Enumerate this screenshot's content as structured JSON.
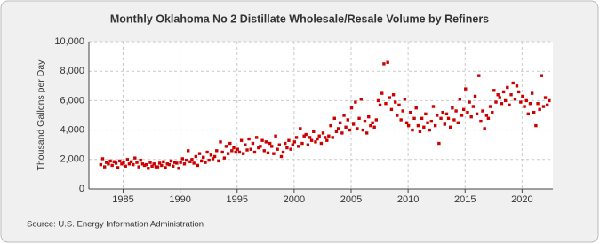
{
  "chart_data": {
    "type": "scatter",
    "title": "Monthly Oklahoma No 2 Distillate Wholesale/Resale Volume by Refiners",
    "y_label": "Thousand Gallons per Day",
    "source": "Source: U.S. Energy Information Administration",
    "color": "#cc0000",
    "grid": true,
    "xlim": [
      1982,
      2022.7
    ],
    "xticks": [
      1985,
      1990,
      1995,
      2000,
      2005,
      2010,
      2015,
      2020
    ],
    "ylim": [
      0,
      10000
    ],
    "yticks": [
      0,
      {
        "value": 2000,
        "label": "2,000"
      },
      {
        "value": 4000,
        "label": "4,000"
      },
      {
        "value": 6000,
        "label": "6,000"
      },
      {
        "value": 8000,
        "label": "8,000"
      },
      {
        "value": 10000,
        "label": "10,000"
      }
    ],
    "x": [
      1983.04,
      1983.21,
      1983.38,
      1983.54,
      1983.71,
      1983.88,
      1984.04,
      1984.21,
      1984.38,
      1984.54,
      1984.71,
      1984.88,
      1985.04,
      1985.21,
      1985.38,
      1985.54,
      1985.71,
      1985.88,
      1986.04,
      1986.21,
      1986.38,
      1986.54,
      1986.71,
      1986.88,
      1987.04,
      1987.21,
      1987.38,
      1987.54,
      1987.71,
      1987.88,
      1988.04,
      1988.21,
      1988.38,
      1988.54,
      1988.71,
      1988.88,
      1989.04,
      1989.21,
      1989.38,
      1989.54,
      1989.71,
      1989.88,
      1990.04,
      1990.21,
      1990.38,
      1990.54,
      1990.71,
      1990.88,
      1991.04,
      1991.21,
      1991.38,
      1991.54,
      1991.71,
      1991.88,
      1992.04,
      1992.21,
      1992.38,
      1992.54,
      1992.71,
      1992.88,
      1993.04,
      1993.21,
      1993.38,
      1993.54,
      1993.71,
      1993.88,
      1994.04,
      1994.21,
      1994.38,
      1994.54,
      1994.71,
      1994.88,
      1995.04,
      1995.21,
      1995.38,
      1995.54,
      1995.71,
      1995.88,
      1996.04,
      1996.21,
      1996.38,
      1996.54,
      1996.71,
      1996.88,
      1997.04,
      1997.21,
      1997.38,
      1997.54,
      1997.71,
      1997.88,
      1998.04,
      1998.21,
      1998.38,
      1998.54,
      1998.71,
      1998.88,
      1999.04,
      1999.21,
      1999.38,
      1999.54,
      1999.71,
      1999.88,
      2000.04,
      2000.21,
      2000.38,
      2000.54,
      2000.71,
      2000.88,
      2001.04,
      2001.21,
      2001.38,
      2001.54,
      2001.71,
      2001.88,
      2002.04,
      2002.21,
      2002.38,
      2002.54,
      2002.71,
      2002.88,
      2003.04,
      2003.21,
      2003.38,
      2003.54,
      2003.71,
      2003.88,
      2004.04,
      2004.21,
      2004.38,
      2004.54,
      2004.71,
      2004.88,
      2005.04,
      2005.21,
      2005.38,
      2005.54,
      2005.71,
      2005.88,
      2006.04,
      2006.21,
      2006.38,
      2006.54,
      2006.71,
      2006.88,
      2007.04,
      2007.21,
      2007.38,
      2007.54,
      2007.71,
      2007.88,
      2008.04,
      2008.21,
      2008.38,
      2008.54,
      2008.71,
      2008.88,
      2009.04,
      2009.21,
      2009.38,
      2009.54,
      2009.71,
      2009.88,
      2010.04,
      2010.21,
      2010.38,
      2010.54,
      2010.71,
      2010.88,
      2011.04,
      2011.21,
      2011.38,
      2011.54,
      2011.71,
      2011.88,
      2012.04,
      2012.21,
      2012.38,
      2012.54,
      2012.71,
      2012.88,
      2013.04,
      2013.21,
      2013.38,
      2013.54,
      2013.71,
      2013.88,
      2014.04,
      2014.21,
      2014.38,
      2014.54,
      2014.71,
      2014.88,
      2015.04,
      2015.21,
      2015.38,
      2015.54,
      2015.71,
      2015.88,
      2016.04,
      2016.21,
      2016.38,
      2016.54,
      2016.71,
      2016.88,
      2017.04,
      2017.21,
      2017.38,
      2017.54,
      2017.71,
      2017.88,
      2018.04,
      2018.21,
      2018.38,
      2018.54,
      2018.71,
      2018.88,
      2019.04,
      2019.21,
      2019.38,
      2019.54,
      2019.71,
      2019.88,
      2020.04,
      2020.21,
      2020.38,
      2020.54,
      2020.71,
      2020.88,
      2021.04,
      2021.21,
      2021.38,
      2021.54,
      2021.71,
      2021.88,
      2022.04,
      2022.21,
      2022.38
    ],
    "values": [
      1650,
      2050,
      1500,
      1800,
      1700,
      1900,
      1600,
      1850,
      1750,
      1450,
      1900,
      1700,
      1800,
      1550,
      2000,
      1700,
      1850,
      1650,
      2100,
      1800,
      1500,
      1950,
      1700,
      1600,
      1650,
      1400,
      1800,
      1550,
      1700,
      1500,
      1500,
      1750,
      1600,
      1850,
      1450,
      1700,
      1650,
      1900,
      1550,
      1800,
      1750,
      1400,
      1800,
      2050,
      1700,
      1950,
      2600,
      1850,
      2000,
      1750,
      2200,
      1600,
      2400,
      1900,
      2150,
      1800,
      2500,
      1950,
      2300,
      2050,
      2200,
      2600,
      1900,
      3200,
      2500,
      2100,
      2900,
      2400,
      3100,
      2600,
      2800,
      2500,
      2700,
      2500,
      3300,
      2400,
      3000,
      2650,
      3400,
      2700,
      3100,
      2500,
      3500,
      2800,
      2900,
      3300,
      2600,
      3200,
      2450,
      3100,
      2900,
      2400,
      3600,
      2700,
      3000,
      2200,
      2500,
      3100,
      2800,
      3300,
      2700,
      3000,
      3200,
      3500,
      2900,
      4100,
      3100,
      3600,
      3700,
      3000,
      3500,
      3300,
      3900,
      3200,
      3400,
      3600,
      3100,
      3800,
      3500,
      3300,
      3600,
      4300,
      3500,
      4800,
      3900,
      4100,
      4500,
      3800,
      5000,
      4200,
      4700,
      4000,
      5500,
      4400,
      5900,
      4100,
      4800,
      6100,
      4000,
      4600,
      3800,
      4900,
      4300,
      4500,
      4200,
      4700,
      6000,
      5700,
      6500,
      8500,
      5800,
      8600,
      6200,
      5400,
      6400,
      5900,
      5000,
      5700,
      4700,
      5300,
      6100,
      4500,
      4300,
      5200,
      4000,
      4800,
      5500,
      4300,
      3900,
      4800,
      4200,
      5100,
      4500,
      4000,
      4600,
      5600,
      4300,
      5000,
      3100,
      4800,
      5200,
      4400,
      5100,
      4800,
      4200,
      5500,
      4700,
      5300,
      4500,
      6100,
      5000,
      5400,
      6800,
      5200,
      5900,
      4900,
      5600,
      6300,
      5100,
      7700,
      4600,
      5300,
      4100,
      5000,
      4800,
      5600,
      5200,
      6700,
      5900,
      6400,
      6200,
      5800,
      6600,
      6000,
      6900,
      5700,
      6400,
      7200,
      6100,
      7000,
      6600,
      5900,
      6300,
      5600,
      6000,
      5100,
      5800,
      6500,
      5200,
      4300,
      5800,
      5400,
      7700,
      5600,
      6200,
      5700,
      6000
    ]
  }
}
